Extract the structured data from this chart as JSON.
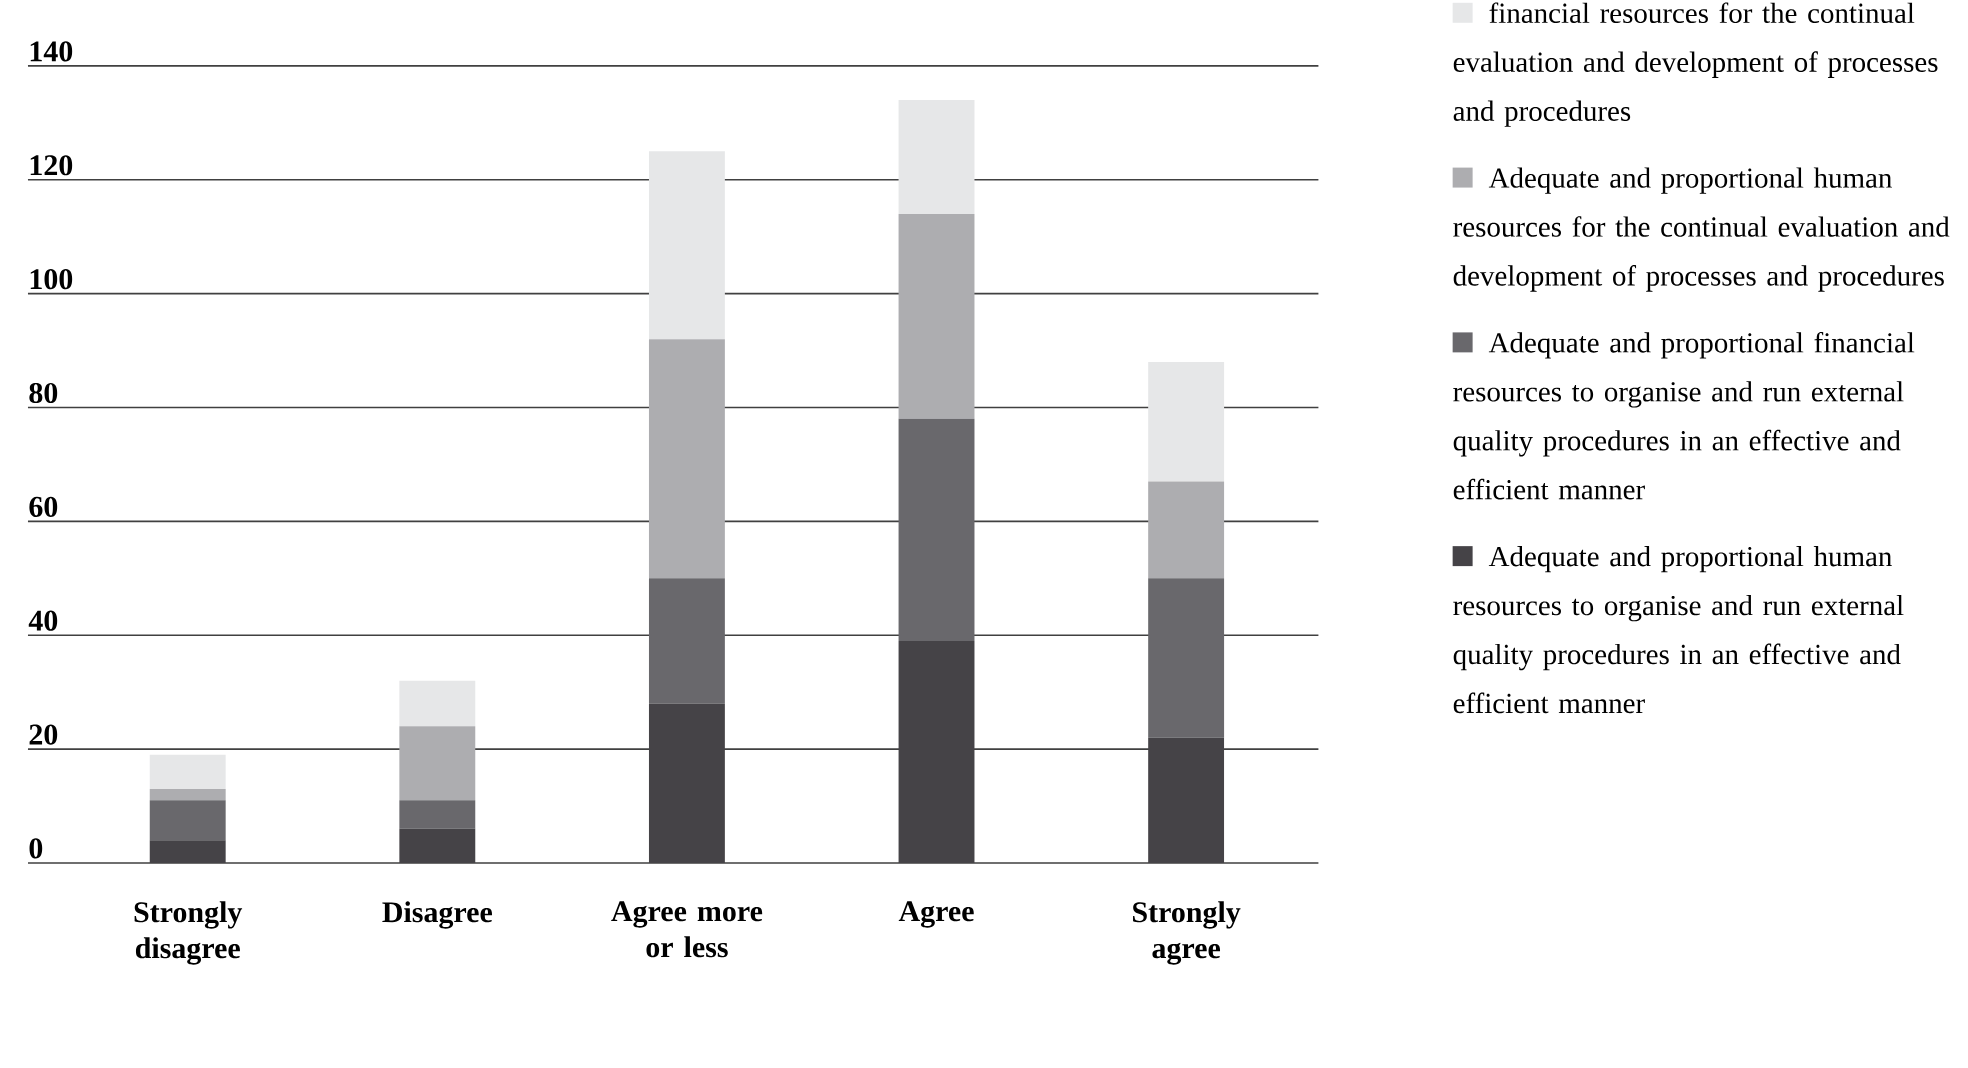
{
  "chart_data": {
    "type": "bar",
    "stacked": true,
    "categories": [
      "Strongly disagree",
      "Disagree",
      "Agree more or less",
      "Agree",
      "Strongly agree"
    ],
    "series": [
      {
        "name": "Adequate and proportional human resources to organise and run external quality procedures in an effective and efficient manner",
        "color": "#454347",
        "values": [
          4,
          6,
          28,
          39,
          22
        ]
      },
      {
        "name": "Adequate and proportional financial resources to organise and run external quality procedures in an effective and efficient manner",
        "color": "#69686c",
        "values": [
          7,
          5,
          22,
          39,
          28
        ]
      },
      {
        "name": "Adequate and proportional human resources for the continual evaluation and development of processes and procedures",
        "color": "#adadb0",
        "values": [
          2,
          13,
          42,
          36,
          17
        ]
      },
      {
        "name": "financial resources for the continual evaluation and development of processes and procedures",
        "color": "#e6e7e8",
        "values": [
          6,
          8,
          33,
          20,
          21
        ]
      }
    ],
    "ylim": [
      0,
      140
    ],
    "yticks": [
      0,
      20,
      40,
      60,
      80,
      100,
      120,
      140
    ],
    "grid": "y",
    "legend": "right"
  }
}
